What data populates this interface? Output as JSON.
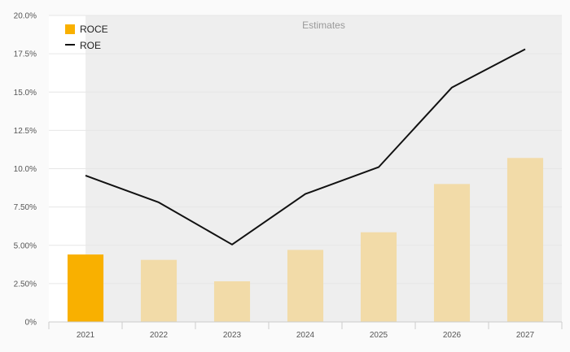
{
  "chart_data": {
    "type": "bar",
    "categories": [
      "2021",
      "2022",
      "2023",
      "2024",
      "2025",
      "2026",
      "2027"
    ],
    "series": [
      {
        "name": "ROCE",
        "type": "bar",
        "values": [
          4.4,
          4.05,
          2.65,
          4.7,
          5.85,
          9.0,
          10.7
        ],
        "estimate_flags": [
          false,
          true,
          true,
          true,
          true,
          true,
          true
        ],
        "color": "#f9b000",
        "estimate_color": "#f2dba8"
      },
      {
        "name": "ROE",
        "type": "line",
        "values": [
          9.55,
          7.8,
          5.05,
          8.35,
          10.1,
          15.3,
          17.8
        ],
        "color": "#111111"
      }
    ],
    "estimates_label": "Estimates",
    "estimates_start_category": "2021",
    "ylim": [
      0,
      20
    ],
    "yticks": [
      "0%",
      "2.50%",
      "5.00%",
      "7.50%",
      "10.0%",
      "12.5%",
      "15.0%",
      "17.5%",
      "20.0%"
    ],
    "ytick_values": [
      0,
      2.5,
      5,
      7.5,
      10,
      12.5,
      15,
      17.5,
      20
    ],
    "xlabel": "",
    "ylabel": "",
    "grid": true,
    "legend_position": "top-left",
    "colors": {
      "page_background": "#fafafa",
      "plot_background": "#ffffff",
      "estimates_shade": "#eeeeee",
      "gridline": "#e6e6e6",
      "axis": "#cccccc"
    }
  }
}
